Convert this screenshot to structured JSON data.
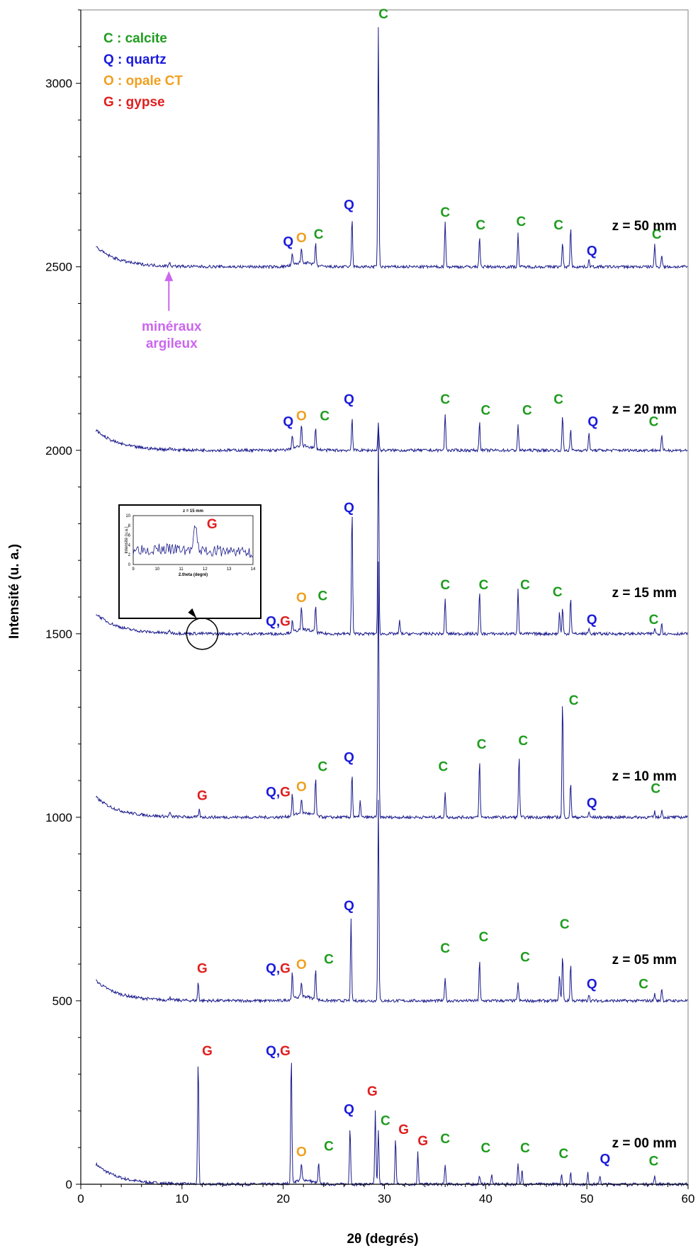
{
  "chart_data": {
    "type": "line",
    "xlabel": "2θ (degrés)",
    "ylabel": "Intensité (u. a.)",
    "xlim": [
      0,
      60
    ],
    "ylim": [
      0,
      3200
    ],
    "x_ticks": [
      0,
      10,
      20,
      30,
      40,
      50,
      60
    ],
    "y_ticks": [
      0,
      500,
      1000,
      1500,
      2000,
      2500,
      3000
    ],
    "line_color": "#1a1a8c",
    "legend": [
      {
        "text": "C : calcite",
        "color": "#1e9c1e"
      },
      {
        "text": "Q : quartz",
        "color": "#1a1adc"
      },
      {
        "text": "O : opale CT",
        "color": "#f0a020"
      },
      {
        "text": "G : gypse",
        "color": "#e01e1e"
      }
    ],
    "arrow_annotation": {
      "lines": [
        "minéraux",
        "argileux"
      ],
      "color": "#cc66ee",
      "x": 8.7
    },
    "series": [
      {
        "name": "z = 00 mm",
        "baseline": 0,
        "x_start": 1.5,
        "peaks": [
          [
            11.6,
            340
          ],
          [
            20.8,
            350
          ],
          [
            21.8,
            45
          ],
          [
            23.5,
            55
          ],
          [
            26.6,
            160
          ],
          [
            29.1,
            200
          ],
          [
            29.4,
            150
          ],
          [
            31.1,
            125
          ],
          [
            33.3,
            90
          ],
          [
            36.0,
            55
          ],
          [
            39.4,
            25
          ],
          [
            40.6,
            30
          ],
          [
            43.2,
            55
          ],
          [
            43.6,
            40
          ],
          [
            47.5,
            30
          ],
          [
            48.4,
            35
          ],
          [
            50.1,
            30
          ],
          [
            51.3,
            25
          ],
          [
            56.7,
            25
          ]
        ],
        "labels": [
          {
            "text": "G",
            "color": "#e01e1e",
            "x": 12.5,
            "y": 340
          },
          {
            "text": "Q,G",
            "color": "#e01e1e",
            "x": 19.5,
            "y": 340
          },
          {
            "text": "O",
            "color": "#f0a020",
            "x": 21.8,
            "y": 65
          },
          {
            "text": "C",
            "color": "#1e9c1e",
            "x": 24.5,
            "y": 80
          },
          {
            "text": "Q",
            "color": "#1a1adc",
            "x": 26.5,
            "y": 180
          },
          {
            "text": "G",
            "color": "#e01e1e",
            "x": 28.8,
            "y": 230
          },
          {
            "text": "C",
            "color": "#1e9c1e",
            "x": 30.1,
            "y": 150
          },
          {
            "text": "G",
            "color": "#e01e1e",
            "x": 31.9,
            "y": 125
          },
          {
            "text": "G",
            "color": "#e01e1e",
            "x": 33.8,
            "y": 95
          },
          {
            "text": "C",
            "color": "#1e9c1e",
            "x": 36.0,
            "y": 100
          },
          {
            "text": "C",
            "color": "#1e9c1e",
            "x": 40.0,
            "y": 75
          },
          {
            "text": "C",
            "color": "#1e9c1e",
            "x": 43.9,
            "y": 75
          },
          {
            "text": "C",
            "color": "#1e9c1e",
            "x": 47.7,
            "y": 60
          },
          {
            "text": "Q",
            "color": "#1a1adc",
            "x": 51.8,
            "y": 45
          },
          {
            "text": "C",
            "color": "#1e9c1e",
            "x": 56.6,
            "y": 40
          }
        ],
        "z_label": "z = 00 mm"
      },
      {
        "name": "z = 05 mm",
        "baseline": 500,
        "x_start": 1.5,
        "peaks": [
          [
            8.8,
            510
          ],
          [
            11.6,
            550
          ],
          [
            20.9,
            575
          ],
          [
            21.8,
            540
          ],
          [
            23.2,
            585
          ],
          [
            26.7,
            720
          ],
          [
            29.4,
            1050
          ],
          [
            36.0,
            565
          ],
          [
            39.4,
            610
          ],
          [
            43.2,
            550
          ],
          [
            47.3,
            575
          ],
          [
            47.6,
            625
          ],
          [
            48.4,
            600
          ],
          [
            50.2,
            520
          ],
          [
            56.7,
            520
          ],
          [
            57.4,
            535
          ]
        ],
        "labels": [
          {
            "text": "G",
            "color": "#e01e1e",
            "x": 12.0,
            "y": 565
          },
          {
            "text": "Q,G",
            "color": "#e01e1e",
            "x": 19.5,
            "y": 565
          },
          {
            "text": "O",
            "color": "#f0a020",
            "x": 21.8,
            "y": 575
          },
          {
            "text": "C",
            "color": "#1e9c1e",
            "x": 24.5,
            "y": 590
          },
          {
            "text": "Q",
            "color": "#1a1adc",
            "x": 26.5,
            "y": 735
          },
          {
            "text": "C",
            "color": "#1e9c1e",
            "x": 36.0,
            "y": 620
          },
          {
            "text": "C",
            "color": "#1e9c1e",
            "x": 39.8,
            "y": 650
          },
          {
            "text": "C",
            "color": "#1e9c1e",
            "x": 43.9,
            "y": 595
          },
          {
            "text": "C",
            "color": "#1e9c1e",
            "x": 47.8,
            "y": 685
          },
          {
            "text": "Q",
            "color": "#1a1adc",
            "x": 50.5,
            "y": 522
          },
          {
            "text": "C",
            "color": "#1e9c1e",
            "x": 55.6,
            "y": 522
          }
        ],
        "z_label": "z = 05 mm"
      },
      {
        "name": "z = 10 mm",
        "baseline": 1000,
        "x_start": 1.5,
        "peaks": [
          [
            8.8,
            1012
          ],
          [
            11.7,
            1020
          ],
          [
            20.9,
            1060
          ],
          [
            21.8,
            1040
          ],
          [
            23.2,
            1105
          ],
          [
            26.8,
            1120
          ],
          [
            27.6,
            1045
          ],
          [
            29.4,
            1700
          ],
          [
            36.0,
            1065
          ],
          [
            39.4,
            1155
          ],
          [
            43.3,
            1170
          ],
          [
            47.6,
            1320
          ],
          [
            48.4,
            1095
          ],
          [
            50.2,
            1015
          ],
          [
            56.7,
            1015
          ],
          [
            57.4,
            1020
          ]
        ],
        "labels": [
          {
            "text": "G",
            "color": "#e01e1e",
            "x": 12.0,
            "y": 1035
          },
          {
            "text": "Q,G",
            "color": "#e01e1e",
            "x": 19.5,
            "y": 1045
          },
          {
            "text": "O",
            "color": "#f0a020",
            "x": 21.8,
            "y": 1060
          },
          {
            "text": "C",
            "color": "#1e9c1e",
            "x": 23.9,
            "y": 1115
          },
          {
            "text": "Q",
            "color": "#1a1adc",
            "x": 26.5,
            "y": 1140
          },
          {
            "text": "C",
            "color": "#1e9c1e",
            "x": 35.8,
            "y": 1115
          },
          {
            "text": "C",
            "color": "#1e9c1e",
            "x": 39.6,
            "y": 1175
          },
          {
            "text": "C",
            "color": "#1e9c1e",
            "x": 43.7,
            "y": 1185
          },
          {
            "text": "C",
            "color": "#1e9c1e",
            "x": 48.7,
            "y": 1295
          },
          {
            "text": "Q",
            "color": "#1a1adc",
            "x": 50.5,
            "y": 1015
          },
          {
            "text": "C",
            "color": "#1e9c1e",
            "x": 56.8,
            "y": 1055
          }
        ],
        "z_label": "z = 10 mm"
      },
      {
        "name": "z = 15 mm",
        "baseline": 1500,
        "x_start": 1.5,
        "peaks": [
          [
            8.8,
            1508
          ],
          [
            20.9,
            1530
          ],
          [
            21.8,
            1560
          ],
          [
            23.2,
            1575
          ],
          [
            26.8,
            1840
          ],
          [
            29.4,
            2050
          ],
          [
            31.5,
            1535
          ],
          [
            36.0,
            1595
          ],
          [
            39.4,
            1615
          ],
          [
            43.2,
            1625
          ],
          [
            47.3,
            1560
          ],
          [
            47.6,
            1570
          ],
          [
            48.4,
            1600
          ],
          [
            50.2,
            1515
          ],
          [
            56.7,
            1515
          ],
          [
            57.4,
            1530
          ]
        ],
        "labels": [
          {
            "text": "Q,G",
            "color": "#e01e1e",
            "x": 19.5,
            "y": 1510
          },
          {
            "text": "O",
            "color": "#f0a020",
            "x": 21.8,
            "y": 1575
          },
          {
            "text": "C",
            "color": "#1e9c1e",
            "x": 23.9,
            "y": 1580
          },
          {
            "text": "Q",
            "color": "#1a1adc",
            "x": 26.5,
            "y": 1820
          },
          {
            "text": "C",
            "color": "#1e9c1e",
            "x": 36.0,
            "y": 1610
          },
          {
            "text": "C",
            "color": "#1e9c1e",
            "x": 39.8,
            "y": 1610
          },
          {
            "text": "C",
            "color": "#1e9c1e",
            "x": 43.9,
            "y": 1610
          },
          {
            "text": "C",
            "color": "#1e9c1e",
            "x": 47.1,
            "y": 1590
          },
          {
            "text": "Q",
            "color": "#1a1adc",
            "x": 50.5,
            "y": 1515
          },
          {
            "text": "C",
            "color": "#1e9c1e",
            "x": 56.6,
            "y": 1515
          }
        ],
        "z_label": "z = 15 mm"
      },
      {
        "name": "z = 20 mm",
        "baseline": 2000,
        "x_start": 1.5,
        "peaks": [
          [
            8.8,
            2008
          ],
          [
            20.9,
            2040
          ],
          [
            21.8,
            2060
          ],
          [
            23.2,
            2055
          ],
          [
            26.8,
            2090
          ],
          [
            29.4,
            2075
          ],
          [
            36.0,
            2100
          ],
          [
            39.4,
            2080
          ],
          [
            43.2,
            2070
          ],
          [
            47.6,
            2095
          ],
          [
            48.4,
            2055
          ],
          [
            50.2,
            2050
          ],
          [
            57.4,
            2040
          ]
        ],
        "labels": [
          {
            "text": "Q",
            "color": "#1a1adc",
            "x": 20.5,
            "y": 2055
          },
          {
            "text": "O",
            "color": "#f0a020",
            "x": 21.8,
            "y": 2070
          },
          {
            "text": "C",
            "color": "#1e9c1e",
            "x": 24.1,
            "y": 2070
          },
          {
            "text": "Q",
            "color": "#1a1adc",
            "x": 26.5,
            "y": 2115
          },
          {
            "text": "C",
            "color": "#1e9c1e",
            "x": 36.0,
            "y": 2115
          },
          {
            "text": "C",
            "color": "#1e9c1e",
            "x": 40.0,
            "y": 2085
          },
          {
            "text": "C",
            "color": "#1e9c1e",
            "x": 44.1,
            "y": 2085
          },
          {
            "text": "C",
            "color": "#1e9c1e",
            "x": 47.2,
            "y": 2115
          },
          {
            "text": "Q",
            "color": "#1a1adc",
            "x": 50.6,
            "y": 2055
          },
          {
            "text": "C",
            "color": "#1e9c1e",
            "x": 56.6,
            "y": 2055
          }
        ],
        "z_label": "z = 20 mm"
      },
      {
        "name": "z = 50 mm",
        "baseline": 2500,
        "x_start": 1.5,
        "peaks": [
          [
            8.8,
            2512
          ],
          [
            20.9,
            2530
          ],
          [
            21.8,
            2540
          ],
          [
            23.2,
            2560
          ],
          [
            26.8,
            2630
          ],
          [
            29.4,
            3150
          ],
          [
            36.0,
            2625
          ],
          [
            39.4,
            2585
          ],
          [
            43.2,
            2590
          ],
          [
            47.6,
            2565
          ],
          [
            48.4,
            2610
          ],
          [
            50.2,
            2520
          ],
          [
            56.7,
            2560
          ],
          [
            57.4,
            2535
          ]
        ],
        "labels": [
          {
            "text": "Q",
            "color": "#1a1adc",
            "x": 20.5,
            "y": 2545
          },
          {
            "text": "O",
            "color": "#f0a020",
            "x": 21.8,
            "y": 2555
          },
          {
            "text": "C",
            "color": "#1e9c1e",
            "x": 23.5,
            "y": 2565
          },
          {
            "text": "Q",
            "color": "#1a1adc",
            "x": 26.5,
            "y": 2645
          },
          {
            "text": "C",
            "color": "#1e9c1e",
            "x": 36.0,
            "y": 2625
          },
          {
            "text": "C",
            "color": "#1e9c1e",
            "x": 39.5,
            "y": 2590
          },
          {
            "text": "C",
            "color": "#1e9c1e",
            "x": 43.5,
            "y": 2600
          },
          {
            "text": "C",
            "color": "#1e9c1e",
            "x": 47.2,
            "y": 2590
          },
          {
            "text": "Q",
            "color": "#1a1adc",
            "x": 50.5,
            "y": 2520
          },
          {
            "text": "C",
            "color": "#1e9c1e",
            "x": 56.9,
            "y": 2565
          },
          {
            "text": "C",
            "color": "#1e9c1e",
            "x": 29.9,
            "y": 3165
          }
        ],
        "z_label": "z = 50 mm"
      }
    ],
    "inset": {
      "title": "z = 15 mm",
      "xlabel": "2.theta (degré)",
      "ylabel": "Intensité (u.a.)",
      "x_ticks": [
        9,
        10,
        11,
        12,
        13,
        14
      ],
      "y_ticks": [
        0,
        2,
        4,
        6,
        8,
        10
      ],
      "xlim": [
        9,
        14
      ],
      "ylim": [
        0,
        10
      ],
      "peak": [
        11.6,
        8
      ],
      "label": {
        "text": "G",
        "color": "#e01e1e"
      }
    }
  }
}
